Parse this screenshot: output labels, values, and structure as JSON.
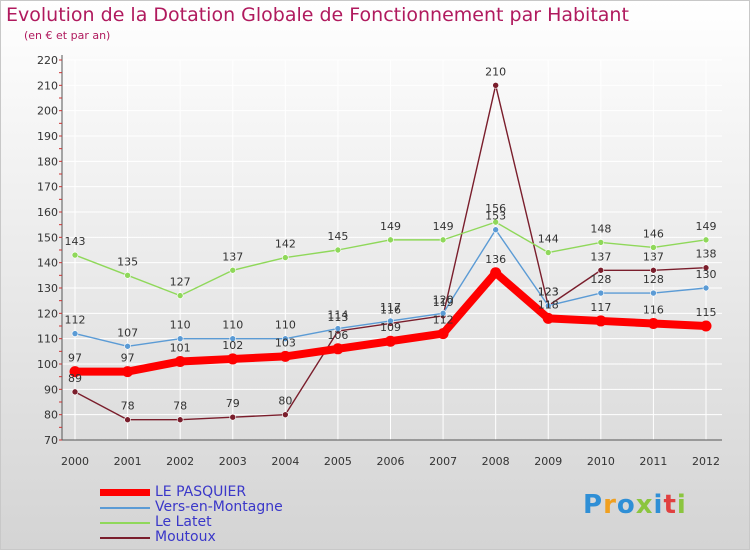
{
  "header": {
    "title": "Evolution de la Dotation Globale de Fonctionnement par Habitant",
    "subtitle": "(en € et par an)"
  },
  "colors": {
    "background_top": "#ffffff",
    "background_bottom": "#d4d4d4",
    "title": "#b01a5e",
    "grid": "#ffffff",
    "axis_text": "#333333",
    "legend_text": "#3a37c9"
  },
  "chart_data": {
    "type": "line",
    "title": "Evolution de la Dotation Globale de Fonctionnement par Habitant",
    "subtitle": "(en € et par an)",
    "xlabel": "",
    "ylabel": "",
    "ylim": [
      70,
      220
    ],
    "yticks": [
      70,
      80,
      90,
      100,
      110,
      120,
      130,
      140,
      150,
      160,
      170,
      180,
      190,
      200,
      210,
      220
    ],
    "grid": true,
    "legend_position": "bottom-left",
    "categories": [
      "2000",
      "2001",
      "2002",
      "2003",
      "2004",
      "2005",
      "2006",
      "2007",
      "2008",
      "2009",
      "2010",
      "2011",
      "2012"
    ],
    "series": [
      {
        "name": "LE PASQUIER",
        "color": "#ff0000",
        "values": [
          97,
          97,
          101,
          102,
          103,
          106,
          109,
          112,
          136,
          118,
          117,
          116,
          115
        ],
        "labels": [
          "97",
          "97",
          "101",
          "102",
          "103",
          "106",
          "109",
          "112",
          "136",
          "118",
          "117",
          "116",
          "115"
        ]
      },
      {
        "name": "Vers-en-Montagne",
        "color": "#5b9bd5",
        "values": [
          112,
          107,
          110,
          110,
          110,
          114,
          117,
          120,
          153,
          123,
          128,
          128,
          130
        ],
        "labels": [
          "112",
          "107",
          "110",
          "110",
          "110",
          "114",
          "117",
          "120",
          "153",
          "123",
          "128",
          "128",
          "130"
        ]
      },
      {
        "name": "Le Latet",
        "color": "#8fd85a",
        "values": [
          143,
          135,
          127,
          137,
          142,
          145,
          149,
          149,
          156,
          144,
          148,
          146,
          149
        ],
        "labels": [
          "143",
          "135",
          "127",
          "137",
          "142",
          "145",
          "149",
          "149",
          "156",
          "144",
          "148",
          "146",
          "149"
        ]
      },
      {
        "name": "Moutoux",
        "color": "#7a1e2c",
        "values": [
          89,
          78,
          78,
          79,
          80,
          113,
          116,
          119,
          210,
          123,
          137,
          137,
          138
        ],
        "labels": [
          "89",
          "78",
          "78",
          "79",
          "80",
          "113",
          "116",
          "119",
          "210",
          "123",
          "137",
          "137",
          "138"
        ]
      }
    ]
  },
  "logo": {
    "letters": [
      "P",
      "r",
      "o",
      "x",
      "i",
      "t",
      "i"
    ],
    "colors": [
      "#2f8fd6",
      "#f0a020",
      "#2f8fd6",
      "#8bc53f",
      "#2f8fd6",
      "#e04040",
      "#8bc53f"
    ]
  }
}
